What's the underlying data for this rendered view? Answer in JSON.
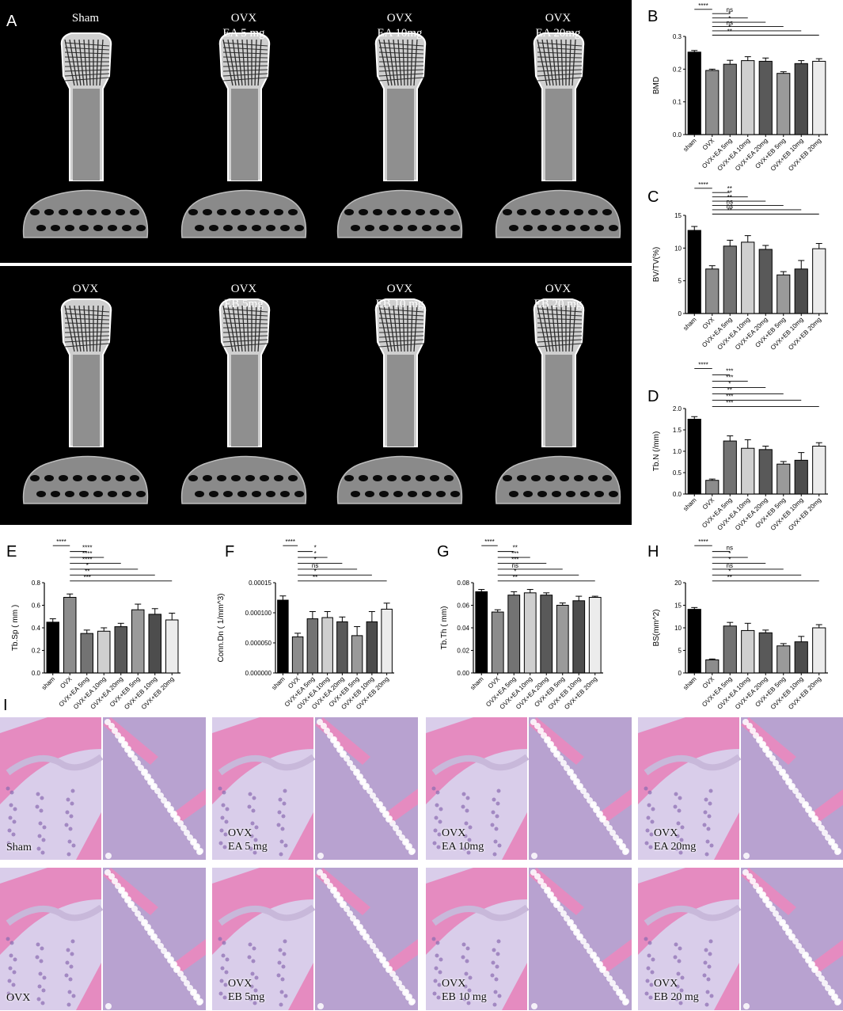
{
  "panels": {
    "A": "A",
    "B": "B",
    "C": "C",
    "D": "D",
    "E": "E",
    "F": "F",
    "G": "G",
    "H": "H",
    "I": "I"
  },
  "microct": {
    "row1": [
      {
        "label": "Sham"
      },
      {
        "label": "OVX\nEA 5 mg"
      },
      {
        "label": "OVX\nEA 10mg"
      },
      {
        "label": "OVX\nEA 20mg"
      }
    ],
    "row2": [
      {
        "label": "OVX"
      },
      {
        "label": "OVX\nEB 5mg"
      },
      {
        "label": "OVX\nEB 10 mg"
      },
      {
        "label": "OVX\nEB  20 mg"
      }
    ]
  },
  "histology": {
    "row1": [
      {
        "label": "Sham"
      },
      {
        "label": "OVX\nEA 5 mg"
      },
      {
        "label": "OVX\nEA 10mg"
      },
      {
        "label": "OVX\nEA 20mg"
      }
    ],
    "row2": [
      {
        "label": "OVX"
      },
      {
        "label": "OVX\nEB 5mg"
      },
      {
        "label": "OVX\nEB 10 mg"
      },
      {
        "label": "OVX\nEB  20 mg"
      }
    ]
  },
  "colors": {
    "bars": [
      "#000000",
      "#8c8c8c",
      "#737373",
      "#cfcfcf",
      "#595959",
      "#9a9a9a",
      "#4d4d4d",
      "#ececec"
    ],
    "he_pink": "#e58bc0",
    "he_purple": "#8a6bb0"
  },
  "chart_data": [
    {
      "id": "B",
      "type": "bar",
      "ylabel": "BMD",
      "categories": [
        "sham",
        "OVX",
        "OVX+EA 5mg",
        "OVX+EA 10mg",
        "OVX+EA 20mg",
        "OVX+EB 5mg",
        "OVX+EB 10mg",
        "OVX+EB 20mg"
      ],
      "values": [
        0.252,
        0.196,
        0.215,
        0.226,
        0.224,
        0.187,
        0.217,
        0.224
      ],
      "errors": [
        0.005,
        0.004,
        0.012,
        0.012,
        0.01,
        0.005,
        0.009,
        0.008
      ],
      "ylim": [
        0,
        0.3
      ],
      "yticks": [
        "0.0",
        "0.1",
        "0.2",
        "0.3"
      ],
      "sig": [
        {
          "a": 0,
          "b": 1,
          "label": "****"
        },
        {
          "a": 1,
          "b": 2,
          "label": "ns"
        },
        {
          "a": 1,
          "b": 3,
          "label": "*"
        },
        {
          "a": 1,
          "b": 4,
          "label": "*"
        },
        {
          "a": 1,
          "b": 5,
          "label": "ns"
        },
        {
          "a": 1,
          "b": 6,
          "label": "*"
        },
        {
          "a": 1,
          "b": 7,
          "label": "**"
        }
      ]
    },
    {
      "id": "C",
      "type": "bar",
      "ylabel": "BV/TV(%)",
      "categories": [
        "sham",
        "OVX",
        "OVX+EA 5mg",
        "OVX+EA 10mg",
        "OVX+EA 20mg",
        "OVX+EB 5mg",
        "OVX+EB 10mg",
        "OVX+EB 20mg"
      ],
      "values": [
        12.7,
        6.8,
        10.3,
        10.9,
        9.8,
        5.9,
        6.8,
        9.9
      ],
      "errors": [
        0.6,
        0.5,
        0.9,
        1.0,
        0.6,
        0.5,
        1.3,
        0.8
      ],
      "ylim": [
        0,
        15
      ],
      "yticks": [
        "0",
        "5",
        "10",
        "15"
      ],
      "sig": [
        {
          "a": 0,
          "b": 1,
          "label": "****"
        },
        {
          "a": 1,
          "b": 2,
          "label": "**"
        },
        {
          "a": 1,
          "b": 3,
          "label": "**"
        },
        {
          "a": 1,
          "b": 4,
          "label": "**"
        },
        {
          "a": 1,
          "b": 5,
          "label": "ns"
        },
        {
          "a": 1,
          "b": 6,
          "label": "ns"
        },
        {
          "a": 1,
          "b": 7,
          "label": "**"
        }
      ]
    },
    {
      "id": "D",
      "type": "bar",
      "ylabel": "Tb.N (/mm)",
      "categories": [
        "sham",
        "OVX",
        "OVX+EA 5mg",
        "OVX+EA 10mg",
        "OVX+EA 20mg",
        "OVX+EB 5mg",
        "OVX+EB 10mg",
        "OVX+EB 20mg"
      ],
      "values": [
        1.75,
        0.32,
        1.24,
        1.07,
        1.04,
        0.7,
        0.79,
        1.12
      ],
      "errors": [
        0.06,
        0.03,
        0.12,
        0.2,
        0.08,
        0.06,
        0.18,
        0.08
      ],
      "ylim": [
        0,
        2.0
      ],
      "yticks": [
        "0.0",
        "0.5",
        "1.0",
        "1.5",
        "2.0"
      ],
      "sig": [
        {
          "a": 0,
          "b": 1,
          "label": "****"
        },
        {
          "a": 1,
          "b": 2,
          "label": "***"
        },
        {
          "a": 1,
          "b": 3,
          "label": "***"
        },
        {
          "a": 1,
          "b": 4,
          "label": "*"
        },
        {
          "a": 1,
          "b": 5,
          "label": "**"
        },
        {
          "a": 1,
          "b": 6,
          "label": "***"
        },
        {
          "a": 1,
          "b": 7,
          "label": "***"
        }
      ]
    },
    {
      "id": "E",
      "type": "bar",
      "ylabel": "Tb.Sp ( mm )",
      "categories": [
        "sham",
        "OVX",
        "OVX+EA 5mg",
        "OVX+EA 10mg",
        "OVX+EA 20mg",
        "OVX+EB 5mg",
        "OVX+EB 10mg",
        "OVX+EB 20mg"
      ],
      "values": [
        0.45,
        0.67,
        0.35,
        0.37,
        0.41,
        0.56,
        0.52,
        0.47
      ],
      "errors": [
        0.03,
        0.03,
        0.03,
        0.03,
        0.03,
        0.05,
        0.05,
        0.06
      ],
      "ylim": [
        0,
        0.8
      ],
      "yticks": [
        "0.0",
        "0.2",
        "0.4",
        "0.6",
        "0.8"
      ],
      "sig": [
        {
          "a": 0,
          "b": 1,
          "label": "****"
        },
        {
          "a": 1,
          "b": 2,
          "label": "****"
        },
        {
          "a": 1,
          "b": 3,
          "label": "****"
        },
        {
          "a": 1,
          "b": 4,
          "label": "****"
        },
        {
          "a": 1,
          "b": 5,
          "label": "*"
        },
        {
          "a": 1,
          "b": 6,
          "label": "**"
        },
        {
          "a": 1,
          "b": 7,
          "label": "***"
        }
      ]
    },
    {
      "id": "F",
      "type": "bar",
      "ylabel": "Conn.Dn ( 1/mm^3)",
      "categories": [
        "sham",
        "OVX",
        "OVX+EA 5mg",
        "OVX+EA 10mg",
        "OVX+EA 20mg",
        "OVX+EB 5mg",
        "OVX+EB 10mg",
        "OVX+EB 20mg"
      ],
      "values": [
        0.000121,
        6e-05,
        9e-05,
        9.2e-05,
        8.5e-05,
        6.2e-05,
        8.5e-05,
        0.000106
      ],
      "errors": [
        7e-06,
        6e-06,
        1.2e-05,
        1e-05,
        8e-06,
        1.5e-05,
        1.7e-05,
        1e-05
      ],
      "ylim": [
        0,
        0.00015
      ],
      "yticks": [
        "0.000000",
        "0.000050",
        "0.000100",
        "0.00015"
      ],
      "sig": [
        {
          "a": 0,
          "b": 1,
          "label": "****"
        },
        {
          "a": 1,
          "b": 2,
          "label": "*"
        },
        {
          "a": 1,
          "b": 3,
          "label": "*"
        },
        {
          "a": 1,
          "b": 4,
          "label": "*"
        },
        {
          "a": 1,
          "b": 5,
          "label": "ns"
        },
        {
          "a": 1,
          "b": 6,
          "label": "*"
        },
        {
          "a": 1,
          "b": 7,
          "label": "**"
        }
      ]
    },
    {
      "id": "G",
      "type": "bar",
      "ylabel": "Tb.Th ( mm)",
      "categories": [
        "sham",
        "OVX",
        "OVX+EA 5mg",
        "OVX+EA 10mg",
        "OVX+EA 20mg",
        "OVX+EB 5mg",
        "OVX+EB 10mg",
        "OVX+EB 20mg"
      ],
      "values": [
        0.072,
        0.054,
        0.069,
        0.071,
        0.069,
        0.06,
        0.064,
        0.067
      ],
      "errors": [
        0.002,
        0.002,
        0.003,
        0.003,
        0.002,
        0.002,
        0.004,
        0.001
      ],
      "ylim": [
        0,
        0.08
      ],
      "yticks": [
        "0.00",
        "0.02",
        "0.04",
        "0.06",
        "0.08"
      ],
      "sig": [
        {
          "a": 0,
          "b": 1,
          "label": "****"
        },
        {
          "a": 1,
          "b": 2,
          "label": "**"
        },
        {
          "a": 1,
          "b": 3,
          "label": "***"
        },
        {
          "a": 1,
          "b": 4,
          "label": "***"
        },
        {
          "a": 1,
          "b": 5,
          "label": "ns"
        },
        {
          "a": 1,
          "b": 6,
          "label": "*"
        },
        {
          "a": 1,
          "b": 7,
          "label": "**"
        }
      ]
    },
    {
      "id": "H",
      "type": "bar",
      "ylabel": "BS(mm^2)",
      "categories": [
        "sham",
        "OVX",
        "OVX+EA 5mg",
        "OVX+EA 10mg",
        "OVX+EA 20mg",
        "OVX+EB 5mg",
        "OVX+EB 10mg",
        "OVX+EB 20mg"
      ],
      "values": [
        14.1,
        2.9,
        10.4,
        9.4,
        8.9,
        6.0,
        6.9,
        10.0
      ],
      "errors": [
        0.4,
        0.2,
        0.8,
        1.6,
        0.6,
        0.5,
        1.2,
        0.7
      ],
      "ylim": [
        0,
        20
      ],
      "yticks": [
        "0",
        "5",
        "10",
        "15",
        "20"
      ],
      "sig": [
        {
          "a": 0,
          "b": 1,
          "label": "****"
        },
        {
          "a": 1,
          "b": 2,
          "label": "ns"
        },
        {
          "a": 1,
          "b": 3,
          "label": "*"
        },
        {
          "a": 1,
          "b": 4,
          "label": "*"
        },
        {
          "a": 1,
          "b": 5,
          "label": "ns"
        },
        {
          "a": 1,
          "b": 6,
          "label": "*"
        },
        {
          "a": 1,
          "b": 7,
          "label": "**"
        }
      ]
    }
  ]
}
